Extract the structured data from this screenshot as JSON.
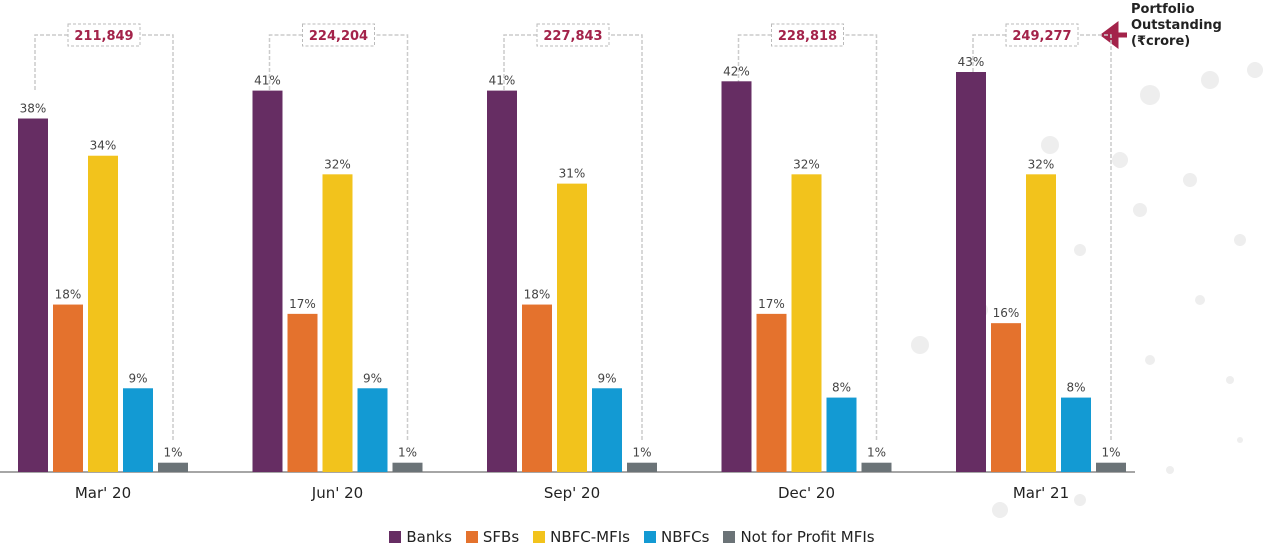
{
  "chart_data": {
    "type": "bar",
    "categories": [
      "Mar' 20",
      "Jun' 20",
      "Sep' 20",
      "Dec' 20",
      "Mar' 21"
    ],
    "series": [
      {
        "name": "Banks",
        "color": "#662d63",
        "values": [
          38,
          41,
          41,
          42,
          43
        ],
        "value_labels": [
          "38%",
          "41%",
          "41%",
          "42%",
          "43%"
        ]
      },
      {
        "name": "SFBs",
        "color": "#e4722d",
        "values": [
          18,
          17,
          18,
          17,
          16
        ],
        "value_labels": [
          "18%",
          "17%",
          "18%",
          "17%",
          "16%"
        ]
      },
      {
        "name": "NBFC-MFIs",
        "color": "#f2c31c",
        "values": [
          34,
          32,
          31,
          32,
          32
        ],
        "value_labels": [
          "34%",
          "32%",
          "31%",
          "32%",
          "32%"
        ]
      },
      {
        "name": "NBFCs",
        "color": "#139ad3",
        "values": [
          9,
          9,
          9,
          8,
          8
        ],
        "value_labels": [
          "9%",
          "9%",
          "9%",
          "8%",
          "8%"
        ]
      },
      {
        "name": "Not for Profit MFIs",
        "color": "#6b7377",
        "values": [
          1,
          1,
          1,
          1,
          1
        ],
        "value_labels": [
          "1%",
          "1%",
          "1%",
          "1%",
          "1%"
        ]
      }
    ],
    "portfolio_outstanding": {
      "title": "Portfolio Outstanding (₹crore)",
      "values": [
        211849,
        224204,
        227843,
        228818,
        249277
      ],
      "value_labels": [
        "211,849",
        "224,204",
        "227,843",
        "228,818",
        "249,277"
      ]
    }
  }
}
